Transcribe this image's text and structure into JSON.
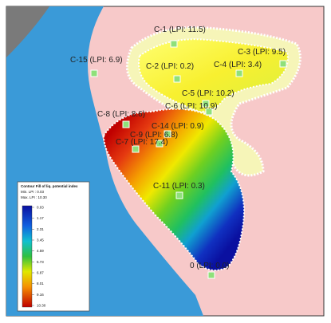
{
  "labels": [
    {
      "text": "C-1 (LPI: 11.5)"
    },
    {
      "text": "C-3 (LPI: 9.5)"
    },
    {
      "text": "C-15 (LPI: 6.9)"
    },
    {
      "text": "C-2 (LPI: 0.2)"
    },
    {
      "text": "C-4 (LPI: 3.4)"
    },
    {
      "text": "C-5 (LPI: 10.2)"
    },
    {
      "text": "C-6 (LPI: 10.9)"
    },
    {
      "text": "C-8 (LPI: 8.6)"
    },
    {
      "text": "C-14 (LPI: 0.9)"
    },
    {
      "text": "C-9 (LPI: 6.8)"
    },
    {
      "text": "C-7 (LPI: 17.4)"
    },
    {
      "text": "C-11 (LPI: 0.3)"
    },
    {
      "text": "0 (LPI: 0.0)"
    }
  ],
  "legend": {
    "title": "Contour Fill of liq. potential index",
    "min": "Min. LPI : 0.03",
    "max": "Max. LPI : 10.30",
    "ticks": [
      "0.03",
      "1.17",
      "2.31",
      "3.45",
      "4.59",
      "5.73",
      "6.87",
      "8.01",
      "9.16",
      "10.30"
    ]
  }
}
